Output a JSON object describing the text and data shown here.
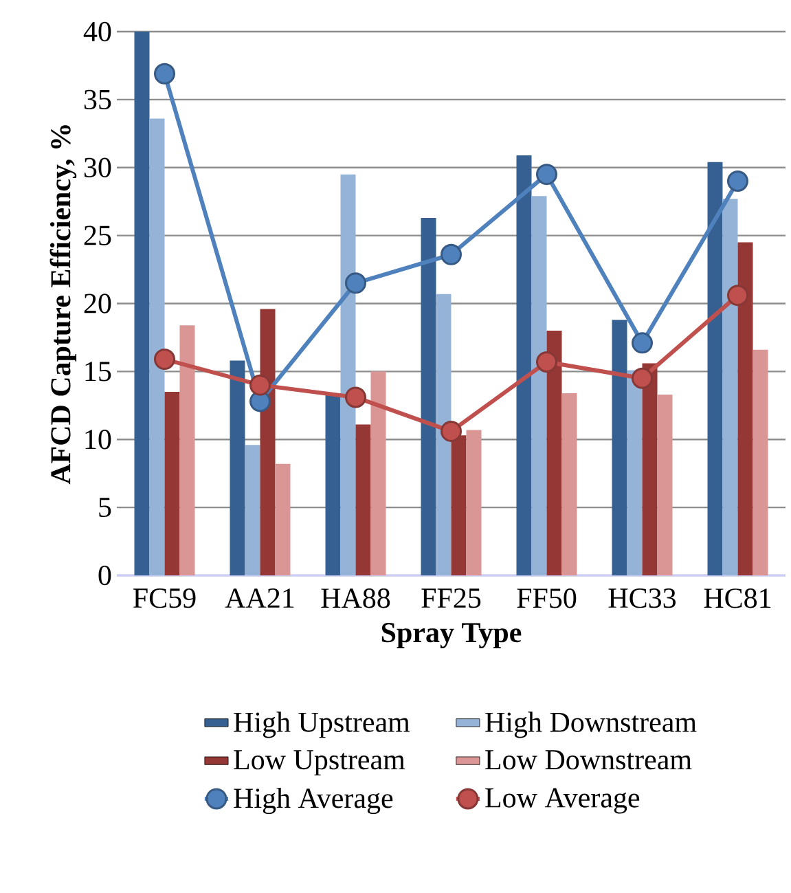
{
  "chart_data": {
    "type": "bar",
    "xlabel": "Spray Type",
    "ylabel": "AFCD Capture Efficiency, %",
    "categories": [
      "FC59",
      "AA21",
      "HA88",
      "FF25",
      "FF50",
      "HC33",
      "HC81"
    ],
    "series": [
      {
        "name": "High Upstream",
        "color": "#366092",
        "values": [
          40,
          15.8,
          13.3,
          26.3,
          30.9,
          18.8,
          30.4
        ]
      },
      {
        "name": "High Downstream",
        "color": "#95b3d7",
        "values": [
          33.6,
          9.6,
          29.5,
          20.7,
          27.9,
          15.1,
          27.7
        ]
      },
      {
        "name": "Low Upstream",
        "color": "#953735",
        "values": [
          13.5,
          19.6,
          11.1,
          10.3,
          18.0,
          15.6,
          24.5
        ]
      },
      {
        "name": "Low Downstream",
        "color": "#d99694",
        "values": [
          18.4,
          8.2,
          15.0,
          10.7,
          13.4,
          13.3,
          16.6
        ]
      },
      {
        "name": "High Average",
        "color": "#4f81bd",
        "type": "line",
        "values": [
          36.9,
          12.8,
          21.5,
          23.6,
          29.5,
          17.1,
          29.0
        ]
      },
      {
        "name": "Low Average",
        "color": "#c0504d",
        "type": "line",
        "values": [
          15.9,
          14.0,
          13.1,
          10.6,
          15.7,
          14.5,
          20.6
        ]
      }
    ],
    "ylim": [
      0,
      40
    ],
    "yticks": [
      0,
      5,
      10,
      15,
      20,
      25,
      30,
      35,
      40
    ],
    "grid": "y",
    "legend": "bottom",
    "marker": "circle",
    "line_style": "solid"
  }
}
